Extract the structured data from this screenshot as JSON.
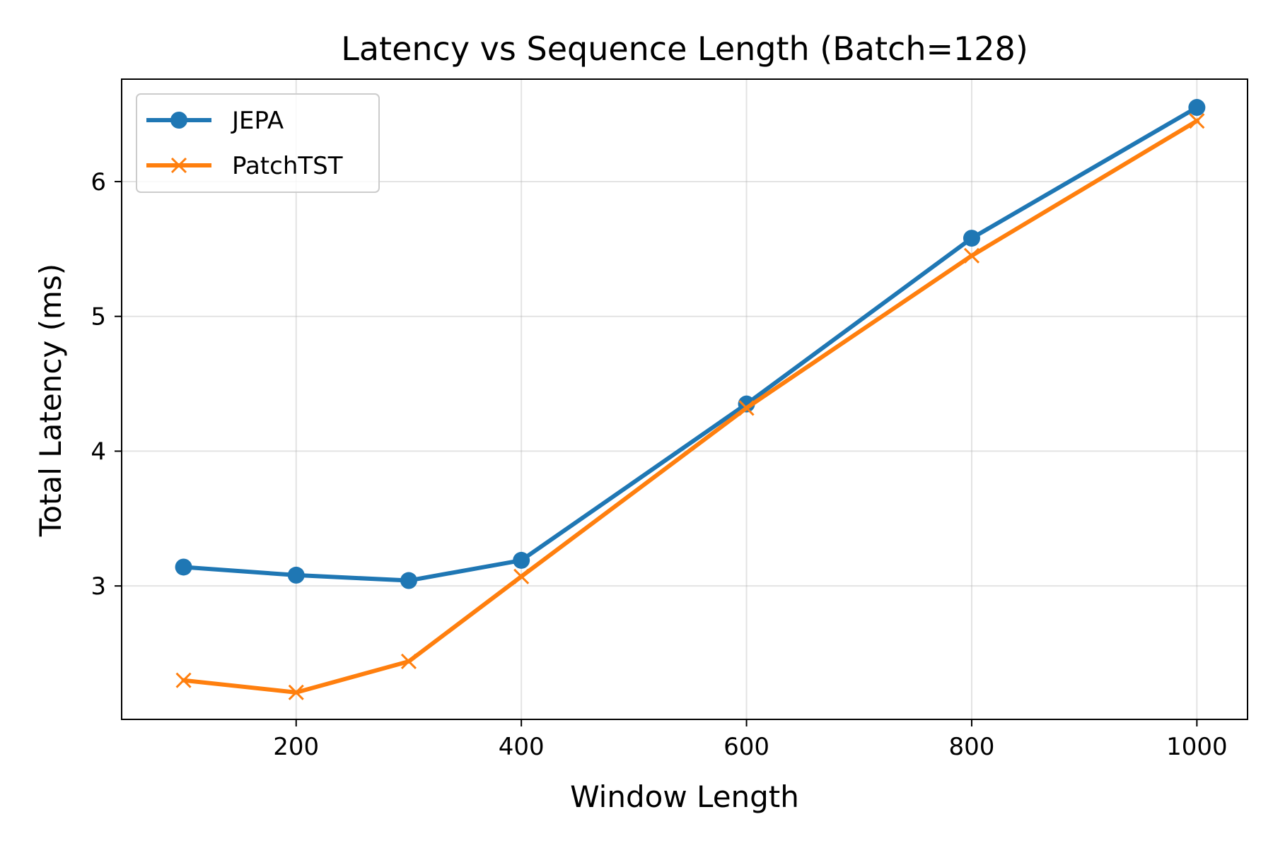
{
  "chart_data": {
    "type": "line",
    "title": "Latency vs Sequence Length (Batch=128)",
    "xlabel": "Window Length",
    "ylabel": "Total Latency (ms)",
    "xlim": [
      45,
      1045
    ],
    "ylim": [
      2.01,
      6.76
    ],
    "xticks": [
      200,
      400,
      600,
      800,
      1000
    ],
    "yticks": [
      3,
      4,
      5,
      6
    ],
    "grid": true,
    "legend_position": "top-left",
    "x": [
      100,
      200,
      300,
      400,
      600,
      800,
      1000
    ],
    "series": [
      {
        "name": "JEPA",
        "color": "#1f77b4",
        "marker": "circle",
        "values": [
          3.14,
          3.08,
          3.04,
          3.19,
          4.35,
          5.58,
          6.55
        ]
      },
      {
        "name": "PatchTST",
        "color": "#ff7f0e",
        "marker": "x",
        "values": [
          2.3,
          2.21,
          2.44,
          3.07,
          4.32,
          5.45,
          6.45
        ]
      }
    ]
  }
}
